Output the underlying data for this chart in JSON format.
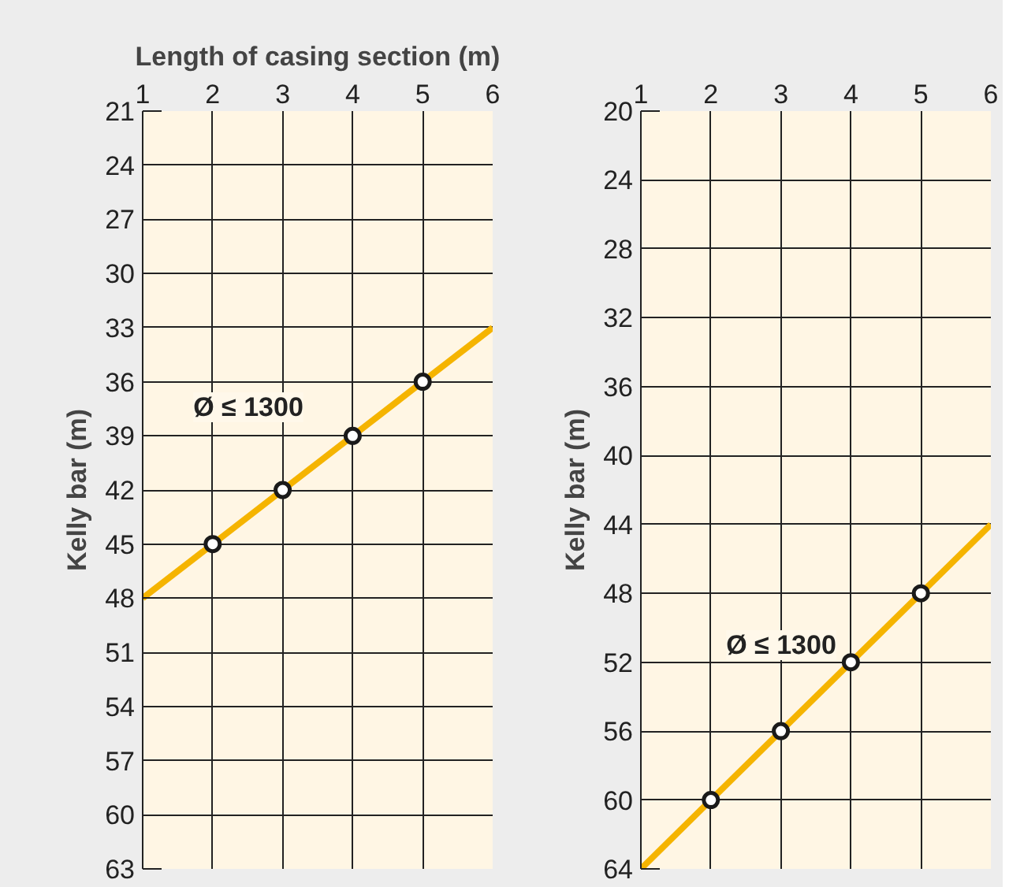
{
  "chart_data": [
    {
      "type": "line",
      "xlabel": "Length of casing section (m)",
      "ylabel": "Kelly bar (m)",
      "xlim": [
        1,
        6
      ],
      "xticks": [
        1,
        2,
        3,
        4,
        5,
        6
      ],
      "ylim": [
        63,
        21
      ],
      "yticks": [
        21,
        24,
        27,
        30,
        33,
        36,
        39,
        42,
        45,
        48,
        51,
        54,
        57,
        60,
        63
      ],
      "grid": true,
      "series": [
        {
          "color": "#f5b400",
          "x": [
            1,
            6
          ],
          "values": [
            48,
            33
          ]
        },
        {
          "type": "scatter",
          "marker": "circle",
          "color": "#1a1a1a",
          "x": [
            2,
            3,
            4,
            5
          ],
          "values": [
            45,
            42,
            39,
            36
          ]
        }
      ],
      "annotations": [
        "Ø ≤ 1300"
      ]
    },
    {
      "type": "line",
      "ylabel": "Kelly bar (m)",
      "xlim": [
        1,
        6
      ],
      "xticks": [
        1,
        2,
        3,
        4,
        5,
        6
      ],
      "ylim": [
        64,
        20
      ],
      "yticks": [
        20,
        24,
        28,
        32,
        36,
        40,
        44,
        48,
        52,
        56,
        60,
        64
      ],
      "grid": true,
      "series": [
        {
          "color": "#f5b400",
          "x": [
            1,
            6
          ],
          "values": [
            64,
            44
          ]
        },
        {
          "type": "scatter",
          "marker": "circle",
          "color": "#1a1a1a",
          "x": [
            2,
            3,
            4,
            5
          ],
          "values": [
            60,
            56,
            52,
            48
          ]
        }
      ],
      "annotations": [
        "Ø ≤ 1300"
      ]
    }
  ]
}
